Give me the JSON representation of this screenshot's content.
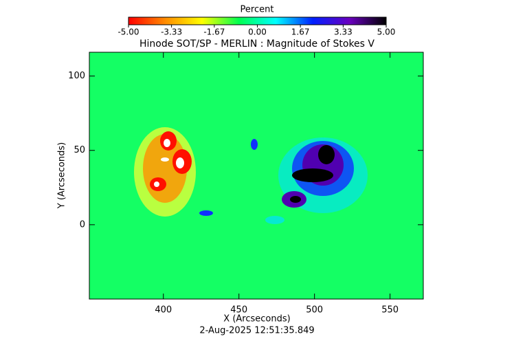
{
  "chart_data": {
    "type": "image",
    "title": "Hinode SOT/SP - MERLIN : Magnitude of Stokes V",
    "x_label": "X (Arcseconds)",
    "y_label": "Y (Arcseconds)",
    "timestamp": "2-Aug-2025 12:51:35.849",
    "xlim": [
      351,
      572
    ],
    "xticks": [
      400,
      450,
      500,
      550
    ],
    "ylim": [
      -50,
      116
    ],
    "yticks": [
      0,
      50,
      100
    ],
    "background_color": "#14ff64",
    "colorbar": {
      "label": "Percent",
      "lim": [
        -5,
        5
      ],
      "colors": [
        "#ff0000",
        "#ff8c00",
        "#ffff00",
        "#00ff50",
        "#00ffff",
        "#0020ff",
        "#6a00c0",
        "#000000"
      ],
      "ticks": [
        {
          "value": -5,
          "label": "-5.00"
        },
        {
          "value": -3.33,
          "label": "-3.33"
        },
        {
          "value": -1.67,
          "label": "-1.67"
        },
        {
          "value": 0,
          "label": "0.00"
        },
        {
          "value": 1.67,
          "label": "1.67"
        },
        {
          "value": 3.33,
          "label": "3.33"
        },
        {
          "value": 5,
          "label": "5.00"
        }
      ]
    }
  }
}
